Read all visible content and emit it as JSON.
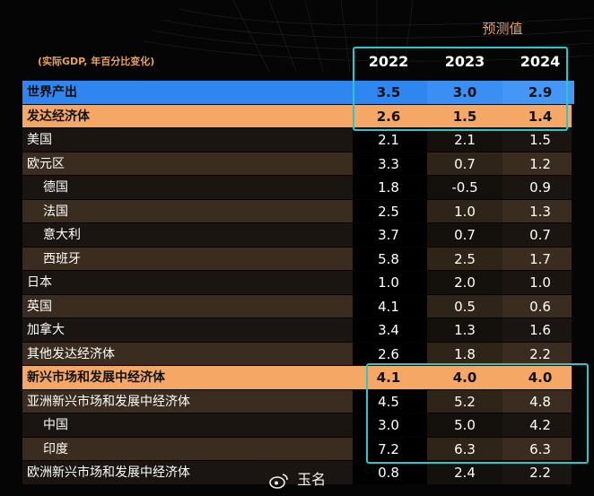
{
  "header": {
    "projection_label": "预测值",
    "units_note": "(实际GDP, 年百分比变化)"
  },
  "colors": {
    "world_row": "#2f86f0",
    "highlight_row": "#f5a866",
    "frame": "#2ec6c9",
    "dark_band": "#3a2c1e",
    "dark_band_alt": "#1a1510"
  },
  "chart_data": {
    "type": "table",
    "columns": [
      "2022",
      "2023",
      "2024"
    ],
    "rows": [
      {
        "label": "世界产出",
        "values": [
          "3.5",
          "3.0",
          "2.9"
        ],
        "style": "world",
        "indent": false
      },
      {
        "label": "发达经济体",
        "values": [
          "2.6",
          "1.5",
          "1.4"
        ],
        "style": "highlight",
        "indent": false
      },
      {
        "label": "美国",
        "values": [
          "2.1",
          "2.1",
          "1.5"
        ],
        "style": "normal",
        "indent": false
      },
      {
        "label": "欧元区",
        "values": [
          "3.3",
          "0.7",
          "1.2"
        ],
        "style": "normal",
        "indent": false
      },
      {
        "label": "德国",
        "values": [
          "1.8",
          "-0.5",
          "0.9"
        ],
        "style": "normal",
        "indent": true
      },
      {
        "label": "法国",
        "values": [
          "2.5",
          "1.0",
          "1.3"
        ],
        "style": "normal",
        "indent": true
      },
      {
        "label": "意大利",
        "values": [
          "3.7",
          "0.7",
          "0.7"
        ],
        "style": "normal",
        "indent": true
      },
      {
        "label": "西班牙",
        "values": [
          "5.8",
          "2.5",
          "1.7"
        ],
        "style": "normal",
        "indent": true
      },
      {
        "label": "日本",
        "values": [
          "1.0",
          "2.0",
          "1.0"
        ],
        "style": "normal",
        "indent": false
      },
      {
        "label": "英国",
        "values": [
          "4.1",
          "0.5",
          "0.6"
        ],
        "style": "normal",
        "indent": false
      },
      {
        "label": "加拿大",
        "values": [
          "3.4",
          "1.3",
          "1.6"
        ],
        "style": "normal",
        "indent": false
      },
      {
        "label": "其他发达经济体",
        "values": [
          "2.6",
          "1.8",
          "2.2"
        ],
        "style": "normal",
        "indent": false
      },
      {
        "label": "新兴市场和发展中经济体",
        "values": [
          "4.1",
          "4.0",
          "4.0"
        ],
        "style": "highlight",
        "indent": false
      },
      {
        "label": "亚洲新兴市场和发展中经济体",
        "values": [
          "4.5",
          "5.2",
          "4.8"
        ],
        "style": "normal",
        "indent": false
      },
      {
        "label": "中国",
        "values": [
          "3.0",
          "5.0",
          "4.2"
        ],
        "style": "normal",
        "indent": true
      },
      {
        "label": "印度",
        "values": [
          "7.2",
          "6.3",
          "6.3"
        ],
        "style": "normal",
        "indent": true
      },
      {
        "label": "欧洲新兴市场和发展中经济体",
        "values": [
          "0.8",
          "2.4",
          "2.2"
        ],
        "style": "normal",
        "indent": false
      }
    ]
  },
  "watermark": {
    "text": "玉名",
    "icon": "weibo-icon"
  }
}
